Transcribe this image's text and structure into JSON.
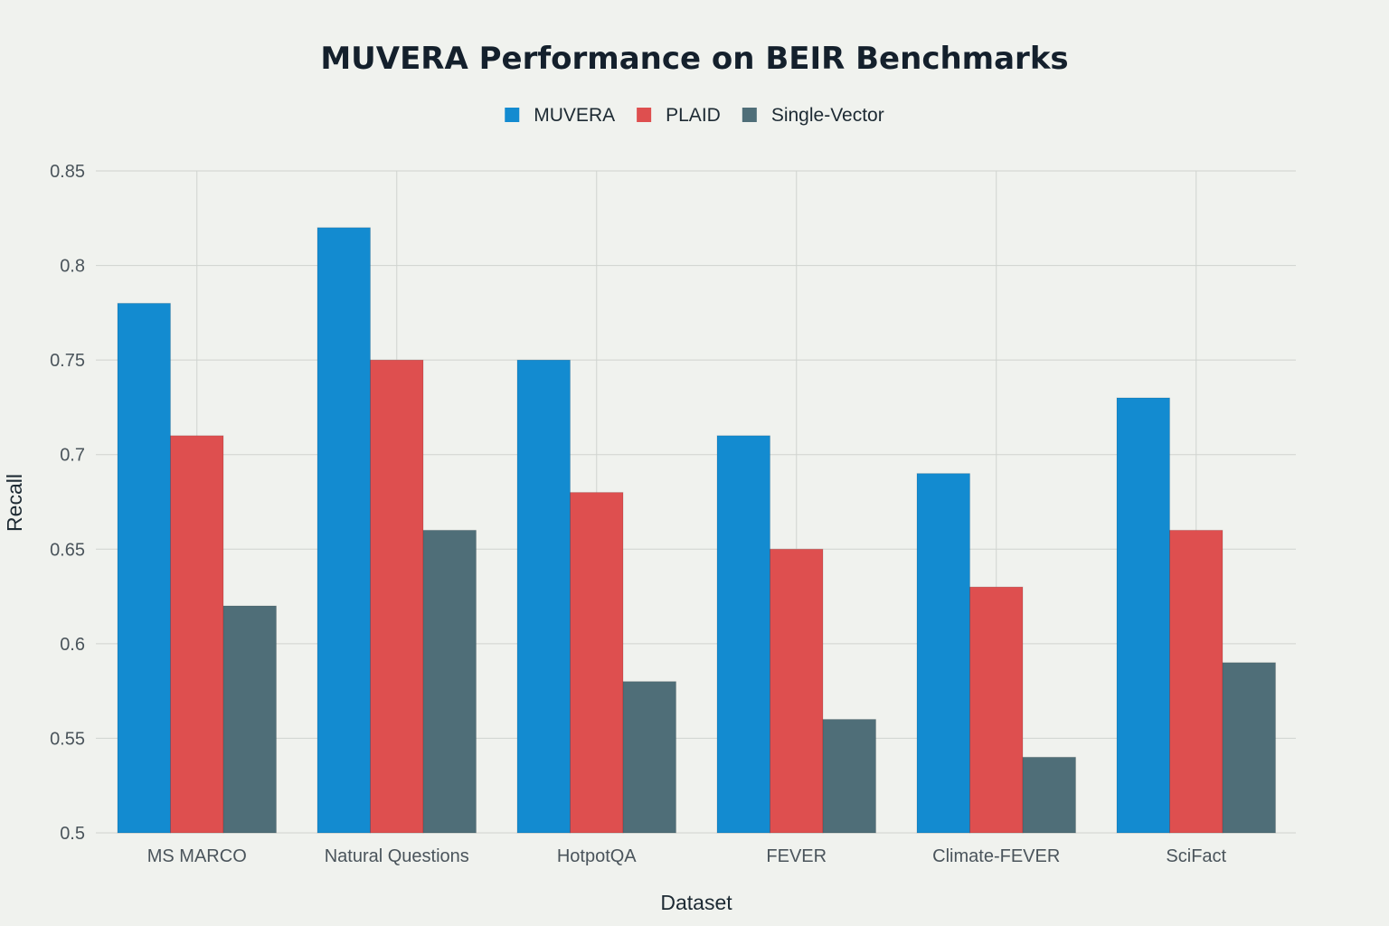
{
  "chart_data": {
    "type": "bar",
    "title": "MUVERA Performance on BEIR Benchmarks",
    "xlabel": "Dataset",
    "ylabel": "Recall",
    "categories": [
      "MS MARCO",
      "Natural Questions",
      "HotpotQA",
      "FEVER",
      "Climate-FEVER",
      "SciFact"
    ],
    "series": [
      {
        "name": "MUVERA",
        "color": "#138bd0",
        "values": [
          0.78,
          0.82,
          0.75,
          0.71,
          0.69,
          0.73
        ]
      },
      {
        "name": "PLAID",
        "color": "#de4f4f",
        "values": [
          0.71,
          0.75,
          0.68,
          0.65,
          0.63,
          0.66
        ]
      },
      {
        "name": "Single-Vector",
        "color": "#4f6e78",
        "values": [
          0.62,
          0.66,
          0.58,
          0.56,
          0.54,
          0.59
        ]
      }
    ],
    "ylim": [
      0.5,
      0.85
    ],
    "yticks": [
      "0.5",
      "0.55",
      "0.6",
      "0.65",
      "0.7",
      "0.75",
      "0.8",
      "0.85"
    ],
    "grid": true,
    "legend_position": "top-center"
  }
}
